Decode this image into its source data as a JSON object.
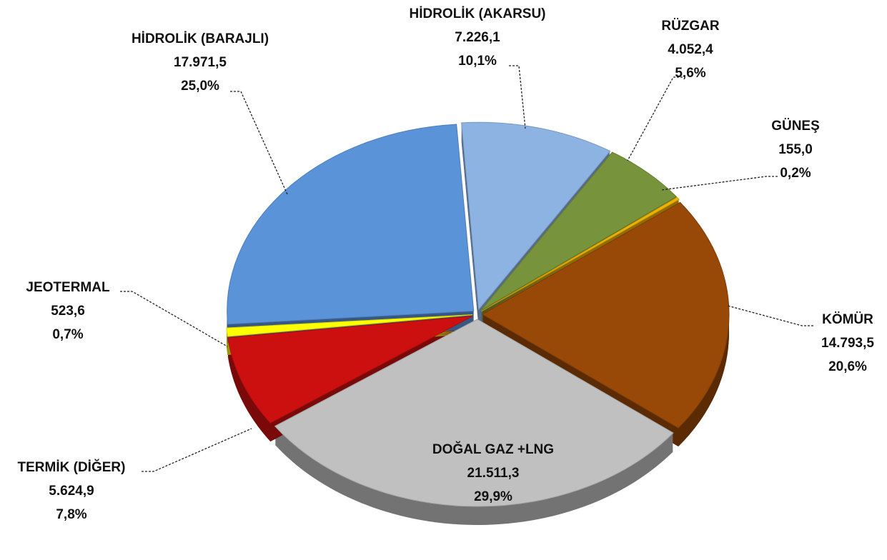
{
  "chart_data": {
    "type": "pie",
    "categories": [
      "HİDROLİK (AKARSU)",
      "RÜZGAR",
      "GÜNEŞ",
      "KÖMÜR",
      "DOĞAL GAZ +LNG",
      "TERMİK (DİĞER)",
      "JEOTERMAL",
      "HİDROLİK (BARAJLI)"
    ],
    "values": [
      7226.1,
      4052.4,
      155.0,
      14793.5,
      21511.3,
      5624.9,
      523.6,
      17971.5
    ],
    "value_labels": [
      "7.226,1",
      "4.052,4",
      "155,0",
      "14.793,5",
      "21.511,3",
      "5.624,9",
      "523,6",
      "17.971,5"
    ],
    "percentages": [
      10.1,
      5.6,
      0.2,
      20.6,
      29.9,
      7.8,
      0.7,
      25.0
    ],
    "percentage_labels": [
      "10,1%",
      "5,6%",
      "0,2%",
      "20,6%",
      "29,9%",
      "7,8%",
      "0,7%",
      "25,0%"
    ],
    "colors": [
      "#8db3e2",
      "#77933c",
      "#f0b400",
      "#984807",
      "#c0c0c0",
      "#cc1010",
      "#ffff00",
      "#5b93d9"
    ]
  }
}
